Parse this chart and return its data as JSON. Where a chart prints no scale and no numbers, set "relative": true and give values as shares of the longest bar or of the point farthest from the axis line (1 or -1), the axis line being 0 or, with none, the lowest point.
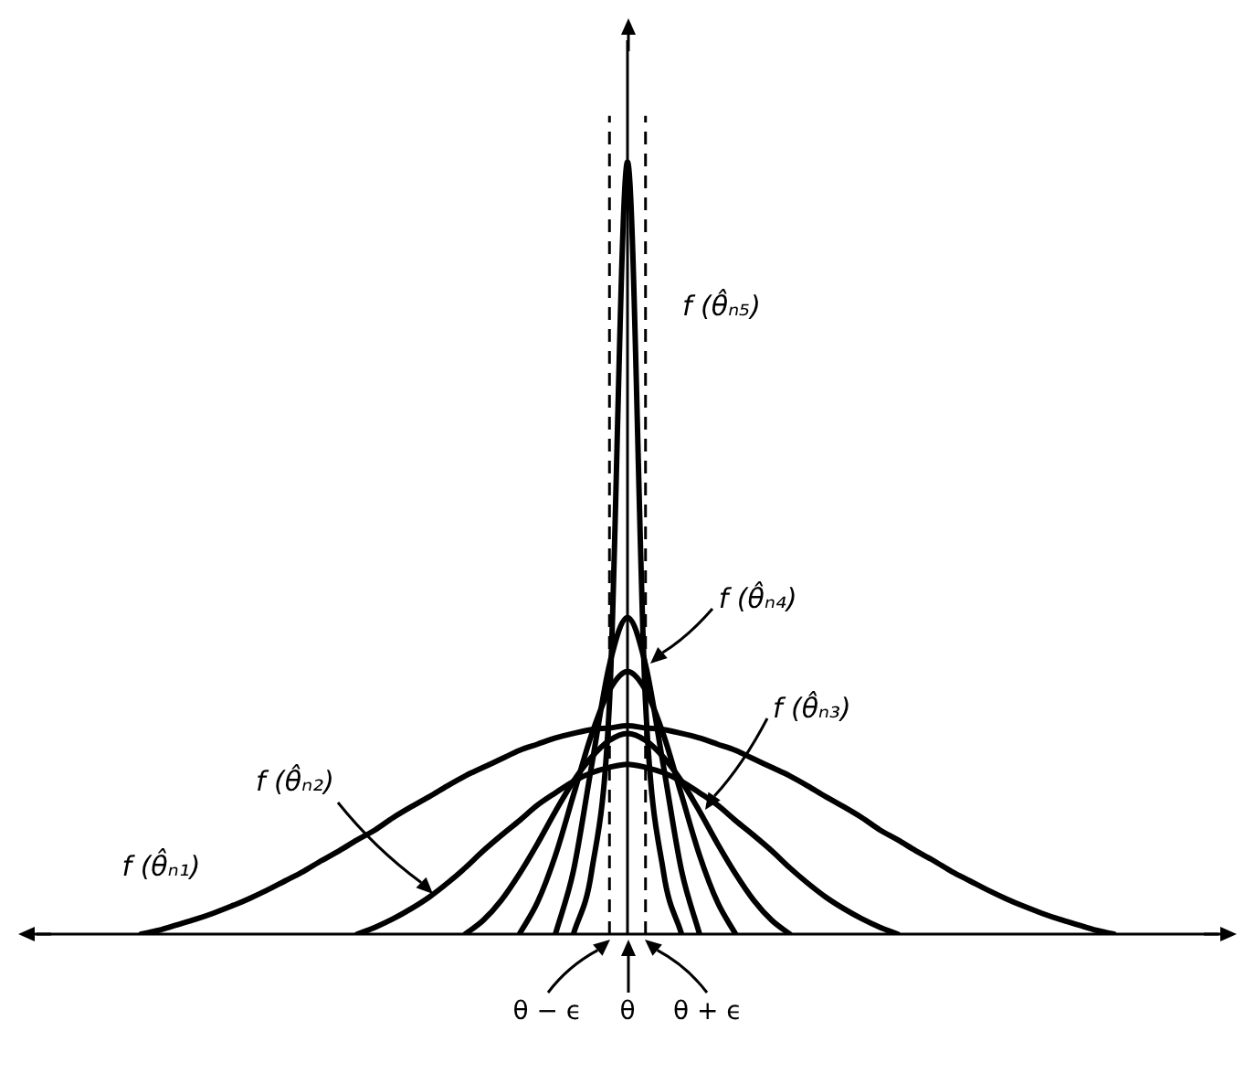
{
  "chart_data": {
    "type": "line",
    "relative": true,
    "grid": false,
    "legend": false,
    "marker": "none",
    "line_style": "solid",
    "categories": [
      null,
      null,
      null,
      null,
      null,
      null,
      null,
      null,
      null,
      null,
      null,
      null,
      null,
      null,
      null,
      null,
      null,
      null,
      null,
      null,
      null,
      null,
      null,
      null,
      null,
      null,
      null,
      null,
      null,
      null,
      null,
      null,
      null,
      null,
      null,
      null,
      null,
      null,
      null,
      null,
      null,
      null,
      null,
      null,
      null,
      null,
      null,
      null,
      null,
      null,
      null,
      null,
      null,
      null,
      null,
      null,
      null,
      null,
      null,
      null,
      null,
      null,
      null,
      null,
      null,
      null,
      null
    ],
    "annotations": [
      "θ − ϵ",
      "θ",
      "θ + ϵ"
    ],
    "series": [
      {
        "name": "f (θ̂ₙ₁)",
        "color": "#000000",
        "values": [
          null,
          null,
          null,
          null,
          null,
          null,
          0,
          0.005,
          0.012,
          0.019,
          0.027,
          0.036,
          0.046,
          0.057,
          0.069,
          0.081,
          0.095,
          0.108,
          0.122,
          0.135,
          0.151,
          0.165,
          0.178,
          0.192,
          0.205,
          0.216,
          0.227,
          0.238,
          0.246,
          0.254,
          0.26,
          0.265,
          0.267,
          0.27,
          0.267,
          0.265,
          0.26,
          0.254,
          0.246,
          0.238,
          0.227,
          0.216,
          0.205,
          0.192,
          0.178,
          0.165,
          0.151,
          0.135,
          0.122,
          0.108,
          0.095,
          0.081,
          0.069,
          0.057,
          0.046,
          0.036,
          0.027,
          0.019,
          0.012,
          0.005,
          0,
          null,
          null,
          null,
          null,
          null,
          null
        ]
      },
      {
        "name": "f (θ̂ₙ₂)",
        "color": "#000000",
        "values": [
          null,
          null,
          null,
          null,
          null,
          null,
          null,
          null,
          null,
          null,
          null,
          null,
          null,
          null,
          null,
          null,
          null,
          null,
          0,
          0.009,
          0.02,
          0.033,
          0.048,
          0.066,
          0.086,
          0.108,
          0.128,
          0.147,
          0.167,
          0.183,
          0.198,
          0.209,
          0.216,
          0.22,
          0.216,
          0.209,
          0.198,
          0.183,
          0.167,
          0.147,
          0.128,
          0.108,
          0.086,
          0.066,
          0.048,
          0.033,
          0.02,
          0.009,
          0,
          null,
          null,
          null,
          null,
          null,
          null,
          null,
          null,
          null,
          null,
          null,
          null,
          null,
          null,
          null,
          null,
          null,
          null
        ]
      },
      {
        "name": "f (θ̂ₙ₃)",
        "color": "#000000",
        "values": [
          null,
          null,
          null,
          null,
          null,
          null,
          null,
          null,
          null,
          null,
          null,
          null,
          null,
          null,
          null,
          null,
          null,
          null,
          null,
          null,
          null,
          null,
          null,
          null,
          0,
          0.018,
          0.044,
          0.078,
          0.117,
          0.159,
          0.198,
          0.229,
          0.251,
          0.26,
          0.251,
          0.229,
          0.198,
          0.159,
          0.117,
          0.078,
          0.044,
          0.018,
          0,
          null,
          null,
          null,
          null,
          null,
          null,
          null,
          null,
          null,
          null,
          null,
          null,
          null,
          null,
          null,
          null,
          null,
          null,
          null,
          null,
          null,
          null,
          null,
          null
        ]
      },
      {
        "color": "#000000",
        "values": [
          null,
          null,
          null,
          null,
          null,
          null,
          null,
          null,
          null,
          null,
          null,
          null,
          null,
          null,
          null,
          null,
          null,
          null,
          null,
          null,
          null,
          null,
          null,
          null,
          null,
          null,
          null,
          0,
          0.041,
          0.102,
          0.18,
          0.258,
          0.316,
          0.34,
          0.316,
          0.258,
          0.18,
          0.102,
          0.041,
          0,
          null,
          null,
          null,
          null,
          null,
          null,
          null,
          null,
          null,
          null,
          null,
          null,
          null,
          null,
          null,
          null,
          null,
          null,
          null,
          null,
          null,
          null,
          null,
          null,
          null,
          null,
          null
        ]
      },
      {
        "name": "f (θ̂ₙ₄)",
        "color": "#000000",
        "values": [
          null,
          null,
          null,
          null,
          null,
          null,
          null,
          null,
          null,
          null,
          null,
          null,
          null,
          null,
          null,
          null,
          null,
          null,
          null,
          null,
          null,
          null,
          null,
          null,
          null,
          null,
          null,
          null,
          null,
          0,
          0.082,
          0.217,
          0.349,
          0.41,
          0.349,
          0.217,
          0.082,
          0,
          null,
          null,
          null,
          null,
          null,
          null,
          null,
          null,
          null,
          null,
          null,
          null,
          null,
          null,
          null,
          null,
          null,
          null,
          null,
          null,
          null,
          null,
          null,
          null,
          null,
          null,
          null,
          null,
          null
        ]
      },
      {
        "name": "f (θ̂ₙ₅)",
        "color": "#000000",
        "values": [
          null,
          null,
          null,
          null,
          null,
          null,
          null,
          null,
          null,
          null,
          null,
          null,
          null,
          null,
          null,
          null,
          null,
          null,
          null,
          null,
          null,
          null,
          null,
          null,
          null,
          null,
          null,
          null,
          null,
          null,
          0,
          0.08,
          0.3,
          1,
          0.3,
          0.08,
          0,
          null,
          null,
          null,
          null,
          null,
          null,
          null,
          null,
          null,
          null,
          null,
          null,
          null,
          null,
          null,
          null,
          null,
          null,
          null,
          null,
          null,
          null,
          null,
          null,
          null,
          null,
          null,
          null,
          null,
          null
        ]
      }
    ]
  }
}
